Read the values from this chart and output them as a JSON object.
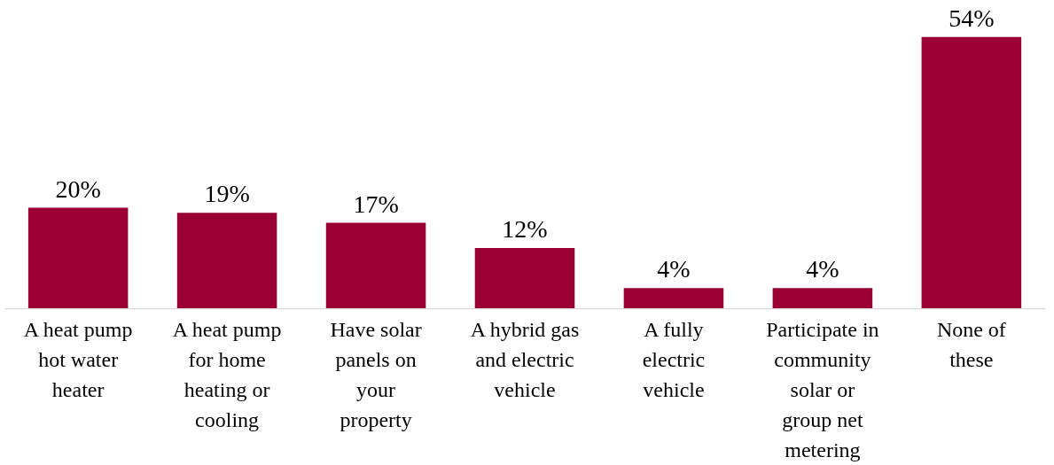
{
  "chart_data": {
    "type": "bar",
    "categories": [
      "A heat pump\nhot water\nheater",
      "A heat pump\nfor home\nheating or\ncooling",
      "Have solar\npanels on\nyour\nproperty",
      "A hybrid gas\nand electric\nvehicle",
      "A fully\nelectric\nvehicle",
      "Participate in\ncommunity\nsolar or\ngroup net\nmetering",
      "None of\nthese"
    ],
    "values": [
      20,
      19,
      17,
      12,
      4,
      4,
      54
    ],
    "color": "#9b0034",
    "value_labels": [
      "20%",
      "19%",
      "17%",
      "12%",
      "4%",
      "4%",
      "54%"
    ]
  }
}
